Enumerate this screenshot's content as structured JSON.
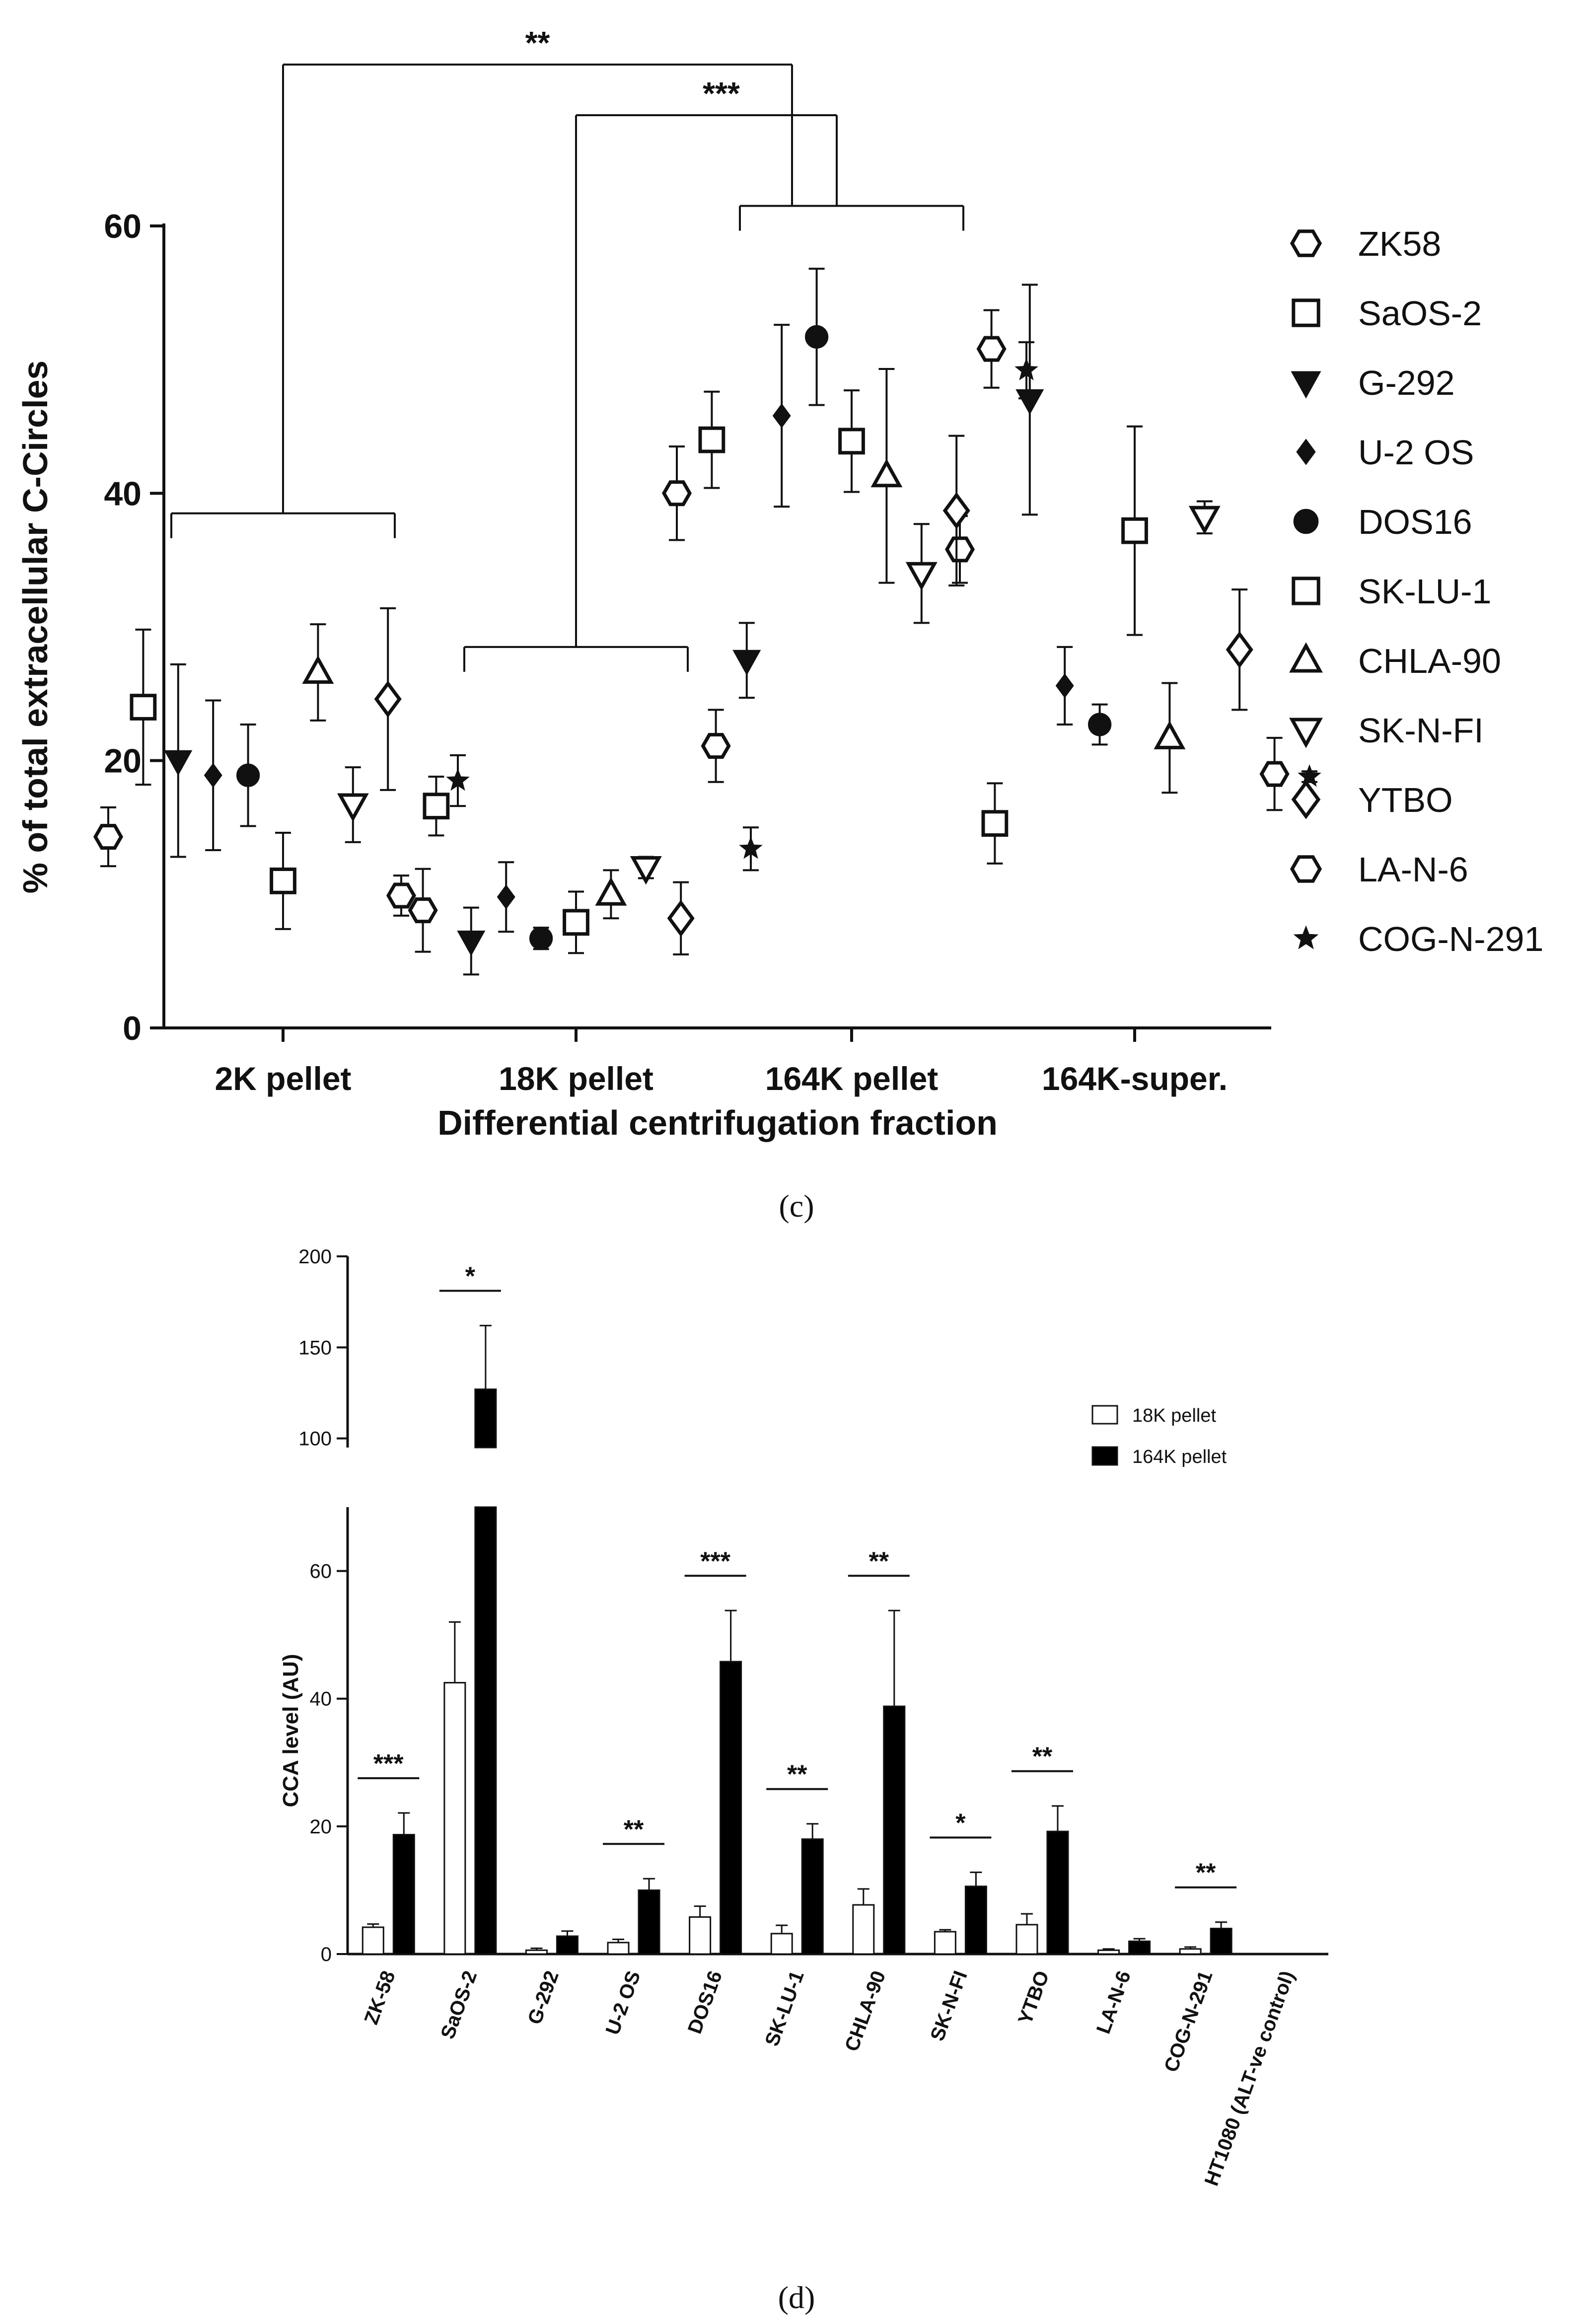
{
  "chart_data": [
    {
      "type": "scatter",
      "panel_label": "c",
      "title": "",
      "xlabel": "Differential centrifugation fraction",
      "ylabel": "% of total extracellular C-Circles",
      "ylim": [
        0,
        60
      ],
      "yticks": [
        0,
        20,
        40,
        60
      ],
      "categories": [
        "2K pellet",
        "18K pellet",
        "164K pellet",
        "164K-super."
      ],
      "legend_position": "right",
      "series": [
        {
          "name": "ZK58",
          "marker": "open-hexagon",
          "values": [
            14.3,
            9.9,
            40.0,
            35.8
          ],
          "errors": [
            2.2,
            1.5,
            3.5,
            2.5
          ]
        },
        {
          "name": "SaOS-2",
          "marker": "open-square",
          "values": [
            24.0,
            16.6,
            44.0,
            15.3
          ],
          "errors": [
            5.8,
            2.2,
            3.6,
            3.0
          ]
        },
        {
          "name": "G-292",
          "marker": "filled-triangle-down",
          "values": [
            20.0,
            6.5,
            27.5,
            47.0
          ],
          "errors": [
            7.2,
            2.5,
            2.8,
            8.6
          ]
        },
        {
          "name": "U-2 OS",
          "marker": "filled-diamond",
          "values": [
            18.9,
            9.8,
            45.8,
            25.6
          ],
          "errors": [
            5.6,
            2.6,
            6.8,
            2.9
          ]
        },
        {
          "name": "DOS16",
          "marker": "filled-circle",
          "values": [
            18.9,
            6.7,
            51.7,
            22.7
          ],
          "errors": [
            3.8,
            0.8,
            5.1,
            1.5
          ]
        },
        {
          "name": "SK-LU-1",
          "marker": "open-square",
          "values": [
            11.0,
            7.9,
            43.9,
            37.2
          ],
          "errors": [
            3.6,
            2.3,
            3.8,
            7.8
          ]
        },
        {
          "name": "CHLA-90",
          "marker": "open-triangle-up",
          "values": [
            26.6,
            10.0,
            41.3,
            21.7
          ],
          "errors": [
            3.6,
            1.8,
            8.0,
            4.1
          ]
        },
        {
          "name": "SK-N-FI",
          "marker": "open-triangle-down",
          "values": [
            16.7,
            12.0,
            34.0,
            38.2
          ],
          "errors": [
            2.8,
            0.8,
            3.7,
            1.2
          ]
        },
        {
          "name": "YTBO",
          "marker": "open-diamond",
          "values": [
            24.6,
            8.2,
            38.7,
            28.3
          ],
          "errors": [
            6.8,
            2.7,
            5.6,
            4.5
          ]
        },
        {
          "name": "LA-N-6",
          "marker": "open-hexagon",
          "values": [
            8.8,
            21.1,
            50.8,
            19.0
          ],
          "errors": [
            3.1,
            2.7,
            2.9,
            2.7
          ]
        },
        {
          "name": "COG-N-291",
          "marker": "filled-star",
          "values": [
            18.5,
            13.4,
            49.2,
            18.8
          ],
          "errors": [
            1.9,
            1.6,
            2.1,
            0.4
          ]
        }
      ],
      "significance": [
        {
          "label": "**",
          "between": [
            "2K pellet",
            "164K pellet"
          ]
        },
        {
          "label": "***",
          "between": [
            "18K pellet",
            "164K pellet"
          ]
        }
      ]
    },
    {
      "type": "bar",
      "panel_label": "d",
      "title": "",
      "xlabel": "",
      "ylabel": "CCA level (AU)",
      "y_axis_segments": [
        {
          "range": [
            0,
            70
          ],
          "ticks": [
            0,
            20,
            40,
            60
          ]
        },
        {
          "range": [
            95,
            200
          ],
          "ticks": [
            100,
            150,
            200
          ]
        }
      ],
      "categories": [
        "ZK-58",
        "SaOS-2",
        "G-292",
        "U-2 OS",
        "DOS16",
        "SK-LU-1",
        "CHLA-90",
        "SK-N-FI",
        "YTBO",
        "LA-N-6",
        "COG-N-291",
        "HT1080 (ALT-ve control)"
      ],
      "legend_position": "top-right",
      "series": [
        {
          "name": "18K pellet",
          "color": "#ffffff",
          "values": [
            4.2,
            42.5,
            0.6,
            1.8,
            5.8,
            3.2,
            7.7,
            3.5,
            4.6,
            0.6,
            0.8,
            0
          ],
          "errors": [
            0.5,
            9.5,
            0.3,
            0.5,
            1.7,
            1.3,
            2.5,
            0.3,
            1.7,
            0.2,
            0.3,
            0
          ]
        },
        {
          "name": "164K pellet",
          "color": "#000000",
          "values": [
            18.7,
            127.0,
            2.8,
            10.0,
            45.8,
            18.0,
            38.8,
            10.6,
            19.2,
            2.0,
            4.0,
            0
          ],
          "errors": [
            3.4,
            35.0,
            0.8,
            1.8,
            8.0,
            2.4,
            15.0,
            2.2,
            4.0,
            0.4,
            1.0,
            0
          ]
        }
      ],
      "significance": [
        {
          "category": "ZK-58",
          "label": "***"
        },
        {
          "category": "SaOS-2",
          "label": "*"
        },
        {
          "category": "U-2 OS",
          "label": "**"
        },
        {
          "category": "DOS16",
          "label": "***"
        },
        {
          "category": "SK-LU-1",
          "label": "**"
        },
        {
          "category": "CHLA-90",
          "label": "**"
        },
        {
          "category": "SK-N-FI",
          "label": "*"
        },
        {
          "category": "YTBO",
          "label": "**"
        },
        {
          "category": "COG-N-291",
          "label": "**"
        }
      ]
    }
  ],
  "captions": {
    "c": "(c)",
    "d": "(d)"
  }
}
